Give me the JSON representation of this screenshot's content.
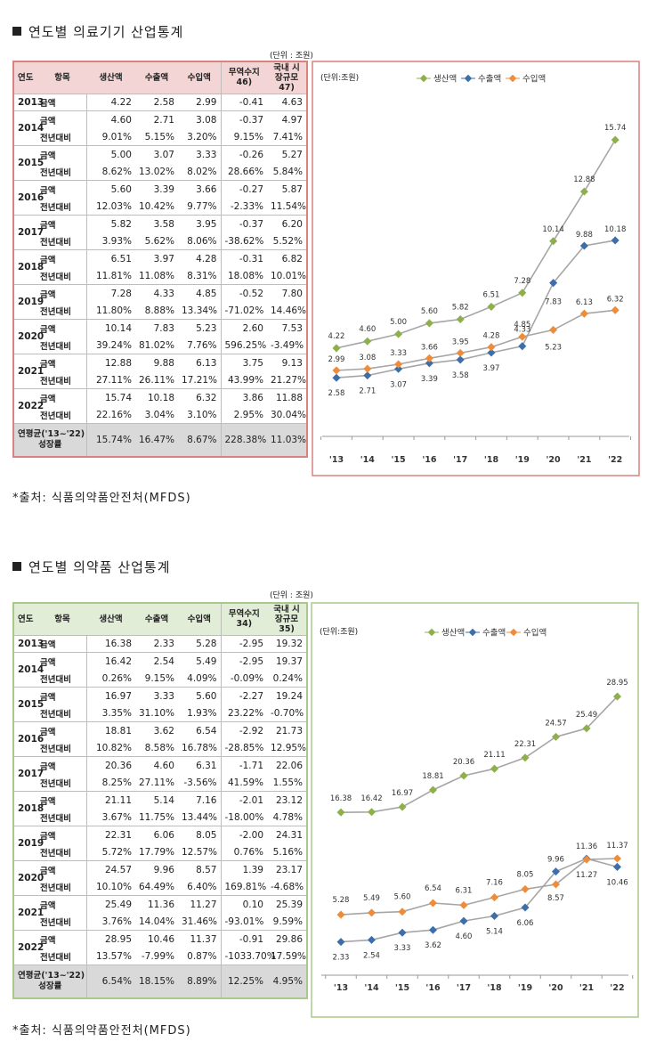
{
  "sections": [
    {
      "title": "연도별 의료기기 산업통계",
      "unit": "(단위 : 조원)",
      "headers": {
        "year": "연도",
        "item": "항목",
        "cols": [
          "생산액",
          "수출액",
          "수입액",
          "무역수지 46)",
          "국내 시장규모 47)"
        ]
      },
      "row_labels": {
        "amount": "금액",
        "yoy": "전년대비"
      },
      "years": [
        {
          "year": "2013",
          "amount": [
            "4.22",
            "2.58",
            "2.99",
            "-0.41",
            "4.63"
          ],
          "yoy": null
        },
        {
          "year": "2014",
          "amount": [
            "4.60",
            "2.71",
            "3.08",
            "-0.37",
            "4.97"
          ],
          "yoy": [
            "9.01%",
            "5.15%",
            "3.20%",
            "9.15%",
            "7.41%"
          ]
        },
        {
          "year": "2015",
          "amount": [
            "5.00",
            "3.07",
            "3.33",
            "-0.26",
            "5.27"
          ],
          "yoy": [
            "8.62%",
            "13.02%",
            "8.02%",
            "28.66%",
            "5.84%"
          ]
        },
        {
          "year": "2016",
          "amount": [
            "5.60",
            "3.39",
            "3.66",
            "-0.27",
            "5.87"
          ],
          "yoy": [
            "12.03%",
            "10.42%",
            "9.77%",
            "-2.33%",
            "11.54%"
          ]
        },
        {
          "year": "2017",
          "amount": [
            "5.82",
            "3.58",
            "3.95",
            "-0.37",
            "6.20"
          ],
          "yoy": [
            "3.93%",
            "5.62%",
            "8.06%",
            "-38.62%",
            "5.52%"
          ]
        },
        {
          "year": "2018",
          "amount": [
            "6.51",
            "3.97",
            "4.28",
            "-0.31",
            "6.82"
          ],
          "yoy": [
            "11.81%",
            "11.08%",
            "8.31%",
            "18.08%",
            "10.01%"
          ]
        },
        {
          "year": "2019",
          "amount": [
            "7.28",
            "4.33",
            "4.85",
            "-0.52",
            "7.80"
          ],
          "yoy": [
            "11.80%",
            "8.88%",
            "13.34%",
            "-71.02%",
            "14.46%"
          ]
        },
        {
          "year": "2020",
          "amount": [
            "10.14",
            "7.83",
            "5.23",
            "2.60",
            "7.53"
          ],
          "yoy": [
            "39.24%",
            "81.02%",
            "7.76%",
            "596.25%",
            "-3.49%"
          ]
        },
        {
          "year": "2021",
          "amount": [
            "12.88",
            "9.88",
            "6.13",
            "3.75",
            "9.13"
          ],
          "yoy": [
            "27.11%",
            "26.11%",
            "17.21%",
            "43.99%",
            "21.27%"
          ]
        },
        {
          "year": "2022",
          "amount": [
            "15.74",
            "10.18",
            "6.32",
            "3.86",
            "11.88"
          ],
          "yoy": [
            "22.16%",
            "3.04%",
            "3.10%",
            "2.95%",
            "30.04%"
          ]
        }
      ],
      "avg": {
        "label1": "연평균('13~'22)",
        "label2": "성장률",
        "values": [
          "15.74%",
          "16.47%",
          "8.67%",
          "228.38%",
          "11.03%"
        ]
      },
      "source": "*출처: 식품의약품안전처(MFDS)",
      "accent": "#d9827f"
    },
    {
      "title": "연도별 의약품 산업통계",
      "unit": "(단위 : 조원)",
      "headers": {
        "year": "연도",
        "item": "항목",
        "cols": [
          "생산액",
          "수출액",
          "수입액",
          "무역수지 34)",
          "국내 시장규모 35)"
        ]
      },
      "row_labels": {
        "amount": "금액",
        "yoy": "전년대비"
      },
      "years": [
        {
          "year": "2013",
          "amount": [
            "16.38",
            "2.33",
            "5.28",
            "-2.95",
            "19.32"
          ],
          "yoy": null
        },
        {
          "year": "2014",
          "amount": [
            "16.42",
            "2.54",
            "5.49",
            "-2.95",
            "19.37"
          ],
          "yoy": [
            "0.26%",
            "9.15%",
            "4.09%",
            "-0.09%",
            "0.24%"
          ]
        },
        {
          "year": "2015",
          "amount": [
            "16.97",
            "3.33",
            "5.60",
            "-2.27",
            "19.24"
          ],
          "yoy": [
            "3.35%",
            "31.10%",
            "1.93%",
            "23.22%",
            "-0.70%"
          ]
        },
        {
          "year": "2016",
          "amount": [
            "18.81",
            "3.62",
            "6.54",
            "-2.92",
            "21.73"
          ],
          "yoy": [
            "10.82%",
            "8.58%",
            "16.78%",
            "-28.85%",
            "12.95%"
          ]
        },
        {
          "year": "2017",
          "amount": [
            "20.36",
            "4.60",
            "6.31",
            "-1.71",
            "22.06"
          ],
          "yoy": [
            "8.25%",
            "27.11%",
            "-3.56%",
            "41.59%",
            "1.55%"
          ]
        },
        {
          "year": "2018",
          "amount": [
            "21.11",
            "5.14",
            "7.16",
            "-2.01",
            "23.12"
          ],
          "yoy": [
            "3.67%",
            "11.75%",
            "13.44%",
            "-18.00%",
            "4.78%"
          ]
        },
        {
          "year": "2019",
          "amount": [
            "22.31",
            "6.06",
            "8.05",
            "-2.00",
            "24.31"
          ],
          "yoy": [
            "5.72%",
            "17.79%",
            "12.57%",
            "0.76%",
            "5.16%"
          ]
        },
        {
          "year": "2020",
          "amount": [
            "24.57",
            "9.96",
            "8.57",
            "1.39",
            "23.17"
          ],
          "yoy": [
            "10.10%",
            "64.49%",
            "6.40%",
            "169.81%",
            "-4.68%"
          ]
        },
        {
          "year": "2021",
          "amount": [
            "25.49",
            "11.36",
            "11.27",
            "0.10",
            "25.39"
          ],
          "yoy": [
            "3.76%",
            "14.04%",
            "31.46%",
            "-93.01%",
            "9.59%"
          ]
        },
        {
          "year": "2022",
          "amount": [
            "28.95",
            "10.46",
            "11.37",
            "-0.91",
            "29.86"
          ],
          "yoy": [
            "13.57%",
            "-7.99%",
            "0.87%",
            "-1033.70%",
            "17.59%"
          ]
        }
      ],
      "avg": {
        "label1": "연평균('13~'22)",
        "label2": "성장률",
        "values": [
          "6.54%",
          "18.15%",
          "8.89%",
          "12.25%",
          "4.95%"
        ]
      },
      "source": "*출처: 식품의약품안전처(MFDS)",
      "accent": "#a8c98b"
    }
  ],
  "chart_data": [
    {
      "type": "line",
      "unit_label": "(단위:조원)",
      "categories": [
        "'13",
        "'14",
        "'15",
        "'16",
        "'17",
        "'18",
        "'19",
        "'20",
        "'21",
        "'22"
      ],
      "series": [
        {
          "name": "생산액",
          "color": "#8db04a",
          "values": [
            4.22,
            4.6,
            5.0,
            5.6,
            5.82,
            6.51,
            7.28,
            10.14,
            12.88,
            15.74
          ]
        },
        {
          "name": "수출액",
          "color": "#3d6ea8",
          "values": [
            2.58,
            2.71,
            3.07,
            3.39,
            3.58,
            3.97,
            4.33,
            7.83,
            9.88,
            10.18
          ]
        },
        {
          "name": "수입액",
          "color": "#ee8c3a",
          "values": [
            2.99,
            3.08,
            3.33,
            3.66,
            3.95,
            4.28,
            4.85,
            5.23,
            6.13,
            6.32
          ]
        }
      ],
      "legend": "top",
      "grid": false
    },
    {
      "type": "line",
      "unit_label": "(단위:조원)",
      "categories": [
        "'13",
        "'14",
        "'15",
        "'16",
        "'17",
        "'18",
        "'19",
        "'20",
        "'21",
        "'22"
      ],
      "series": [
        {
          "name": "생산액",
          "color": "#8db04a",
          "values": [
            16.38,
            16.42,
            16.97,
            18.81,
            20.36,
            21.11,
            22.31,
            24.57,
            25.49,
            28.95
          ]
        },
        {
          "name": "수출액",
          "color": "#3d6ea8",
          "values": [
            2.33,
            2.54,
            3.33,
            3.62,
            4.6,
            5.14,
            6.06,
            9.96,
            11.36,
            10.46
          ]
        },
        {
          "name": "수입액",
          "color": "#ee8c3a",
          "values": [
            5.28,
            5.49,
            5.6,
            6.54,
            6.31,
            7.16,
            8.05,
            8.57,
            11.27,
            11.37
          ]
        }
      ],
      "legend": "top",
      "grid": false
    }
  ]
}
